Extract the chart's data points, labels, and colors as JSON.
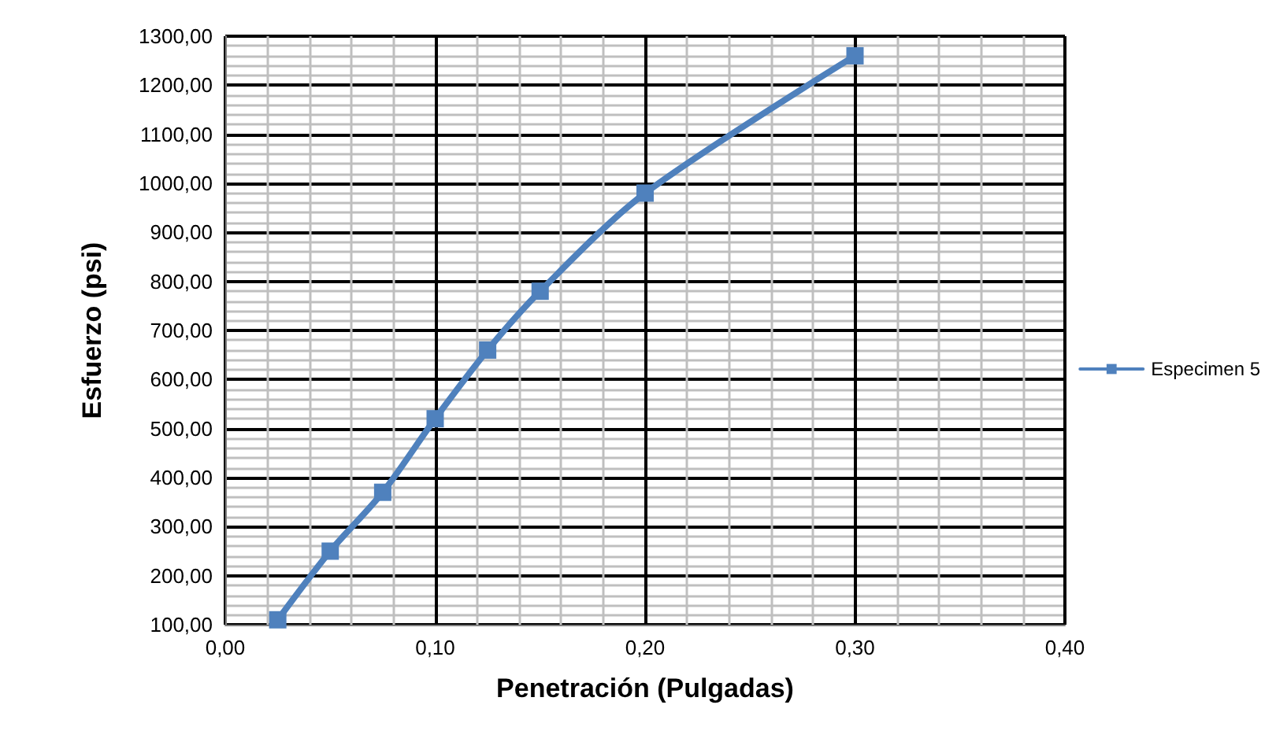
{
  "chart_data": {
    "type": "line",
    "xlabel": "Penetración (Pulgadas)",
    "ylabel": "Esfuerzo (psi)",
    "series": [
      {
        "name": "Especimen 5",
        "color": "#4f81bd",
        "x": [
          0.025,
          0.05,
          0.075,
          0.1,
          0.125,
          0.15,
          0.2,
          0.3
        ],
        "values": [
          110,
          250,
          370,
          520,
          660,
          780,
          980,
          1260
        ]
      }
    ],
    "xlim": [
      0,
      0.4
    ],
    "ylim": [
      100,
      1300
    ],
    "xticks": [
      {
        "value": 0,
        "label": "0,00"
      },
      {
        "value": 0.1,
        "label": "0,10"
      },
      {
        "value": 0.2,
        "label": "0,20"
      },
      {
        "value": 0.3,
        "label": "0,30"
      },
      {
        "value": 0.4,
        "label": "0,40"
      }
    ],
    "yticks": [
      {
        "value": 100,
        "label": "100,00"
      },
      {
        "value": 200,
        "label": "200,00"
      },
      {
        "value": 300,
        "label": "300,00"
      },
      {
        "value": 400,
        "label": "400,00"
      },
      {
        "value": 500,
        "label": "500,00"
      },
      {
        "value": 600,
        "label": "600,00"
      },
      {
        "value": 700,
        "label": "700,00"
      },
      {
        "value": 800,
        "label": "800,00"
      },
      {
        "value": 900,
        "label": "900,00"
      },
      {
        "value": 1000,
        "label": "1000,00"
      },
      {
        "value": 1100,
        "label": "1100,00"
      },
      {
        "value": 1200,
        "label": "1200,00"
      },
      {
        "value": 1300,
        "label": "1300,00"
      }
    ],
    "grid": true,
    "legend": "right",
    "marker": "square",
    "line_style": "solid"
  }
}
